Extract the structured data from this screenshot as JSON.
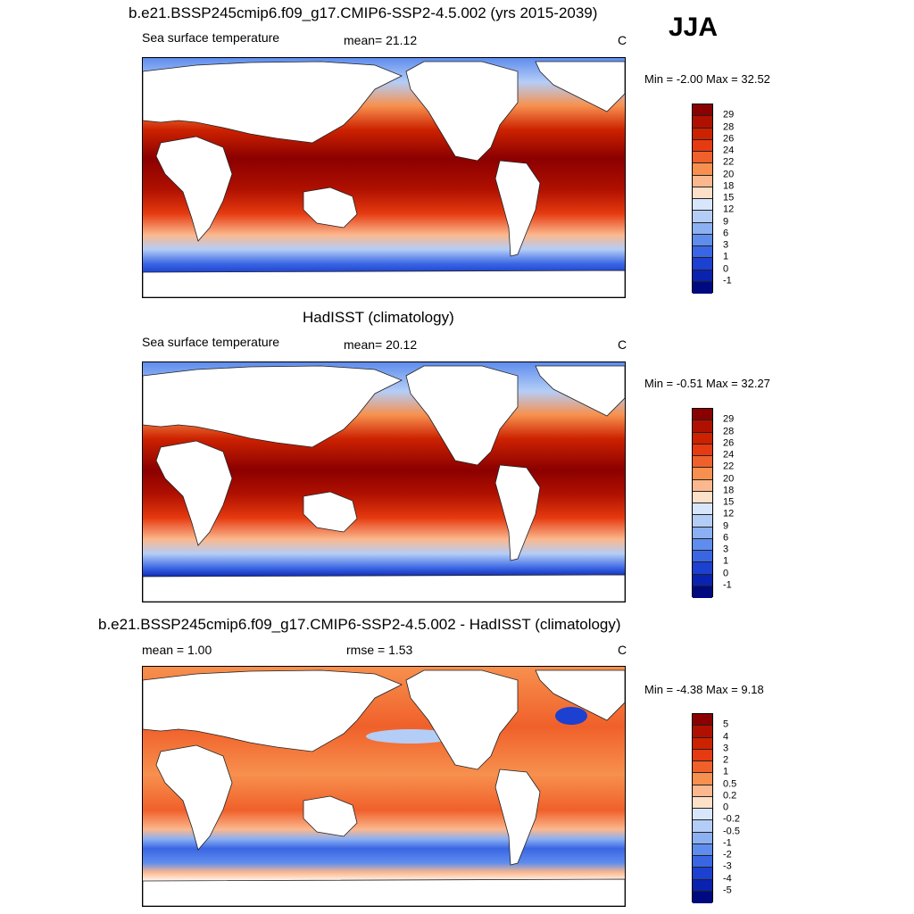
{
  "season": "JJA",
  "panels": [
    {
      "title": "b.e21.BSSP245cmip6.f09_g17.CMIP6-SSP2-4.5.002 (yrs 2015-2039)",
      "left_label": "Sea surface temperature",
      "mid_label": "mean=  21.12",
      "units": "C",
      "minmax": "Min =  -2.00 Max =  32.52",
      "colorbar_labels": [
        "29",
        "28",
        "26",
        "24",
        "22",
        "20",
        "18",
        "15",
        "12",
        "9",
        "6",
        "3",
        "1",
        "0",
        "-1"
      ],
      "colors": [
        "#8b0000",
        "#b01000",
        "#cc2200",
        "#e63a10",
        "#f0602a",
        "#f7904e",
        "#fbb88e",
        "#fde0c8",
        "#d8e6fb",
        "#b4cdf7",
        "#8cb0f2",
        "#5f8ded",
        "#3a66e4",
        "#1c40d0",
        "#0a22b0",
        "#000a80"
      ]
    },
    {
      "title": "HadISST (climatology)",
      "left_label": "Sea surface temperature",
      "mid_label": "mean=  20.12",
      "units": "C",
      "minmax": "Min =  -0.51 Max =  32.27",
      "colorbar_labels": [
        "29",
        "28",
        "26",
        "24",
        "22",
        "20",
        "18",
        "15",
        "12",
        "9",
        "6",
        "3",
        "1",
        "0",
        "-1"
      ],
      "colors": [
        "#8b0000",
        "#b01000",
        "#cc2200",
        "#e63a10",
        "#f0602a",
        "#f7904e",
        "#fbb88e",
        "#fde0c8",
        "#d8e6fb",
        "#b4cdf7",
        "#8cb0f2",
        "#5f8ded",
        "#3a66e4",
        "#1c40d0",
        "#0a22b0",
        "#000a80"
      ]
    },
    {
      "title": "b.e21.BSSP245cmip6.f09_g17.CMIP6-SSP2-4.5.002 - HadISST (climatology)",
      "left_label": "mean =   1.00",
      "mid_label": "rmse =   1.53",
      "units": "C",
      "minmax": "Min =  -4.38 Max =   9.18",
      "colorbar_labels": [
        "5",
        "4",
        "3",
        "2",
        "1",
        "0.5",
        "0.2",
        "0",
        "-0.2",
        "-0.5",
        "-1",
        "-2",
        "-3",
        "-4",
        "-5"
      ],
      "colors": [
        "#8b0000",
        "#b01000",
        "#cc2200",
        "#e63a10",
        "#f0602a",
        "#f7904e",
        "#fbb88e",
        "#fde0c8",
        "#d8e6fb",
        "#b4cdf7",
        "#8cb0f2",
        "#5f8ded",
        "#3a66e4",
        "#1c40d0",
        "#0a22b0",
        "#000a80"
      ]
    }
  ]
}
